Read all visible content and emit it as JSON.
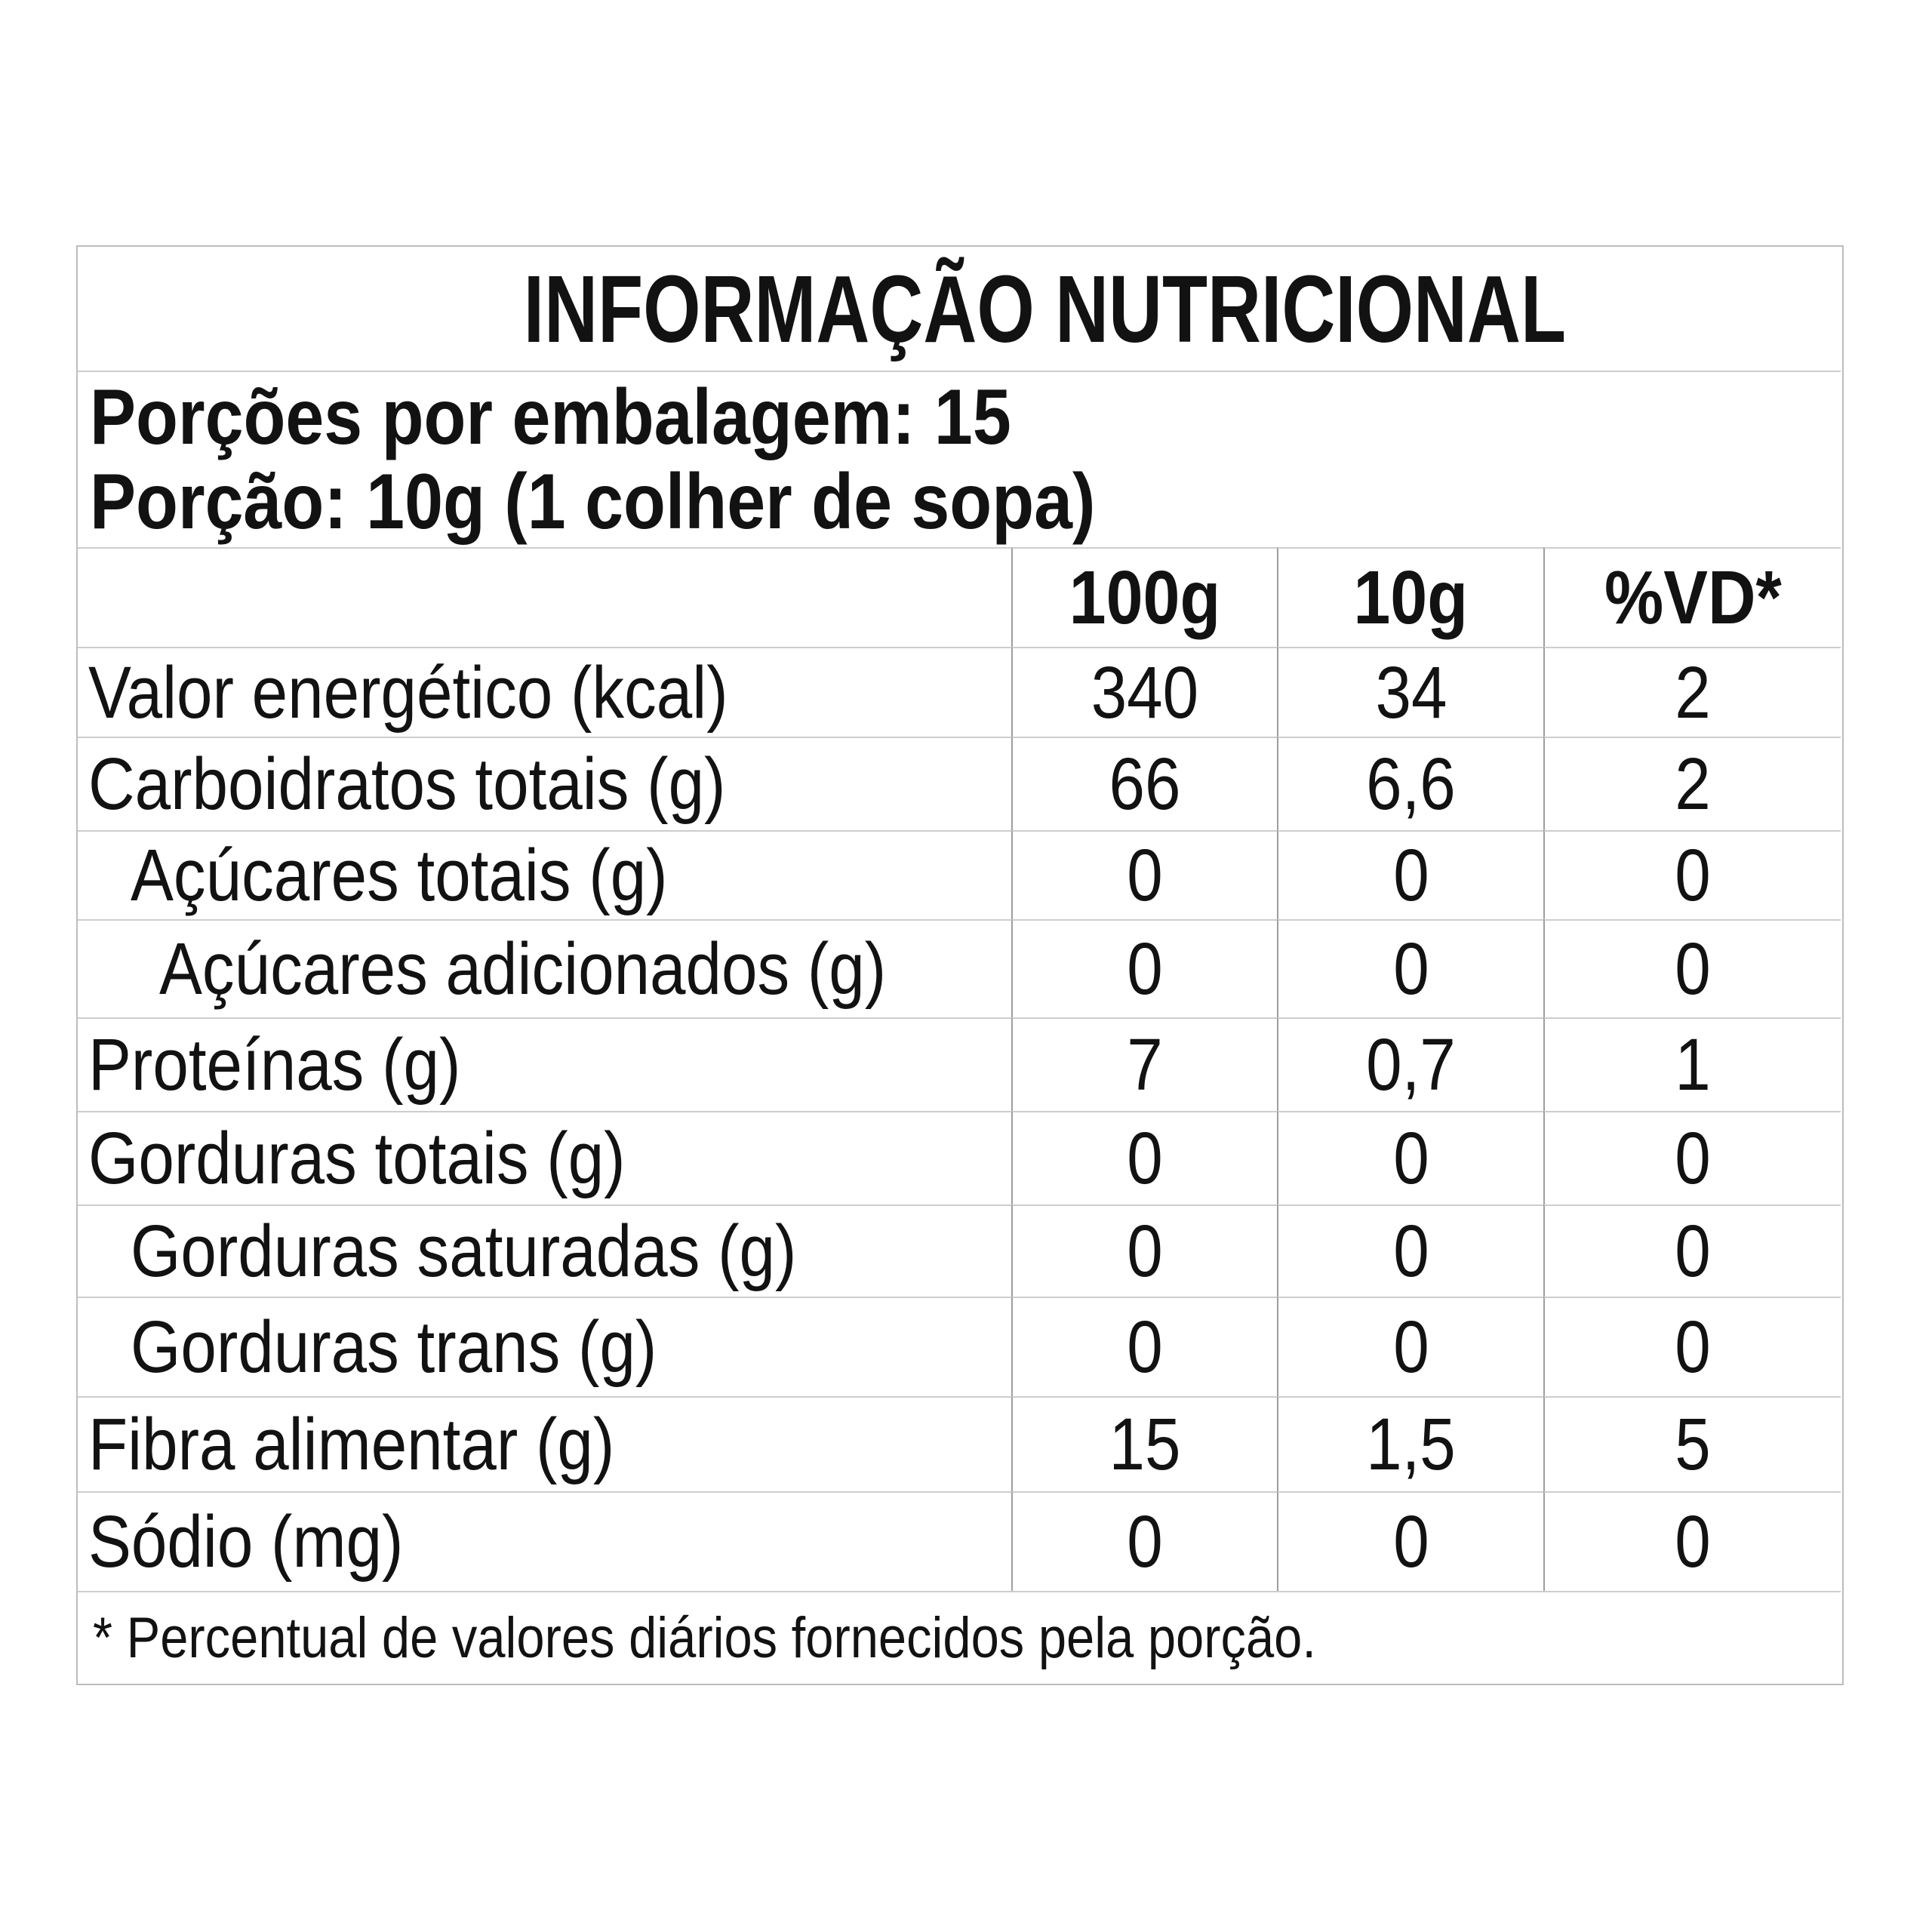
{
  "colors": {
    "background": "#ffffff",
    "text": "#121212",
    "outer_border": "#bdbdbd",
    "row_line": "#cdcdcd",
    "column_line": "#9e9e9e"
  },
  "table": {
    "title": "INFORMAÇÃO NUTRICIONAL",
    "serving_lines": [
      "Porções por embalagem: 15",
      "Porção: 10g (1 colher de sopa)"
    ],
    "columns": [
      "100g",
      "10g",
      "%VD*"
    ],
    "rows": [
      {
        "label": "Valor energético (kcal)",
        "indent": 0,
        "values": [
          "340",
          "34",
          "2"
        ]
      },
      {
        "label": "Carboidratos totais (g)",
        "indent": 0,
        "values": [
          "66",
          "6,6",
          "2"
        ]
      },
      {
        "label": "Açúcares totais (g)",
        "indent": 1,
        "values": [
          "0",
          "0",
          "0"
        ]
      },
      {
        "label": "Açúcares adicionados (g)",
        "indent": 2,
        "values": [
          "0",
          "0",
          "0"
        ]
      },
      {
        "label": "Proteínas (g)",
        "indent": 0,
        "values": [
          "7",
          "0,7",
          "1"
        ]
      },
      {
        "label": "Gorduras totais (g)",
        "indent": 0,
        "values": [
          "0",
          "0",
          "0"
        ]
      },
      {
        "label": "Gorduras saturadas (g)",
        "indent": 1,
        "values": [
          "0",
          "0",
          "0"
        ]
      },
      {
        "label": "Gorduras trans (g)",
        "indent": 1,
        "values": [
          "0",
          "0",
          "0"
        ]
      },
      {
        "label": "Fibra alimentar (g)",
        "indent": 0,
        "values": [
          "15",
          "1,5",
          "5"
        ]
      },
      {
        "label": "Sódio (mg)",
        "indent": 0,
        "values": [
          "0",
          "0",
          "0"
        ]
      }
    ],
    "footnote": "* Percentual de valores diários fornecidos pela porção."
  }
}
